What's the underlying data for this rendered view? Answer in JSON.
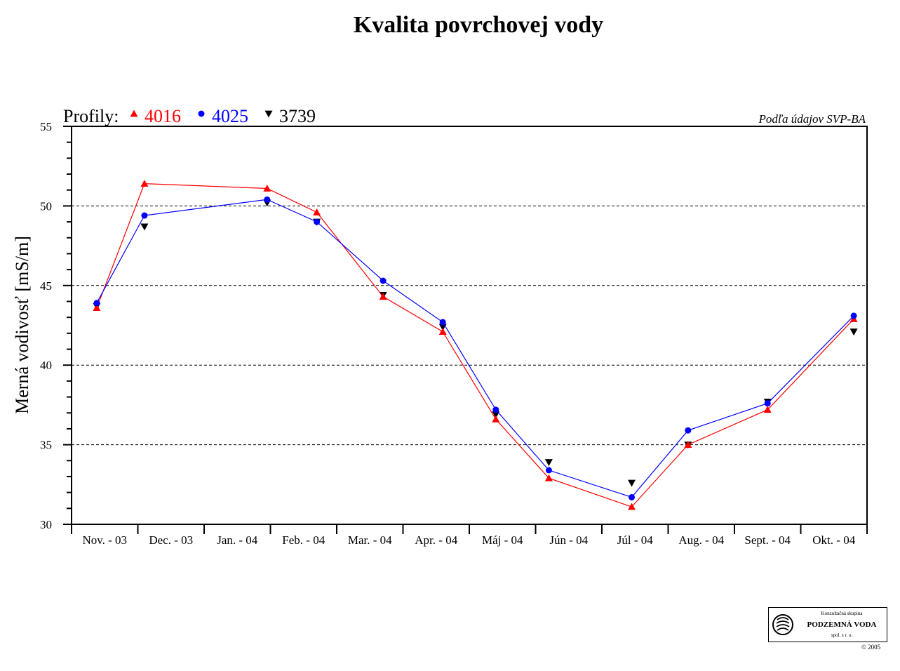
{
  "chart_data": {
    "type": "line",
    "title": "Kvalita povrchovej vody",
    "legend_label": "Profily:",
    "source_note": "Podľa údajov SVP-BA",
    "ylabel": "Merná vodivosť [mS/m]",
    "xlabel": "",
    "ylim": [
      30,
      55
    ],
    "yticks": [
      30,
      35,
      40,
      45,
      50,
      55
    ],
    "grid": "horizontal dashed at 35, 40, 45, 50",
    "legend_position": "top-left",
    "categories": [
      "Nov. - 03",
      "Dec. - 03",
      "Jan. - 04",
      "Feb. - 04",
      "Mar. - 04",
      "Apr. - 04",
      "Máj - 04",
      "Jún - 04",
      "Júl - 04",
      "Aug. - 04",
      "Sept. - 04",
      "Okt. - 04"
    ],
    "series": [
      {
        "name": "4016",
        "color": "#ff0000",
        "marker": "triangle-up",
        "points": [
          [
            0.38,
            43.6
          ],
          [
            1.1,
            51.4
          ],
          [
            2.95,
            51.1
          ],
          [
            3.7,
            49.6
          ],
          [
            4.7,
            44.3
          ],
          [
            5.6,
            42.1
          ],
          [
            6.4,
            36.6
          ],
          [
            7.2,
            32.9
          ],
          [
            8.45,
            31.1
          ],
          [
            9.3,
            35.0
          ],
          [
            10.5,
            37.2
          ],
          [
            11.8,
            42.9
          ]
        ]
      },
      {
        "name": "4025",
        "color": "#0000ff",
        "marker": "circle",
        "points": [
          [
            0.38,
            43.9
          ],
          [
            1.1,
            49.4
          ],
          [
            2.95,
            50.4
          ],
          [
            3.7,
            49.0
          ],
          [
            4.7,
            45.3
          ],
          [
            5.6,
            42.7
          ],
          [
            6.4,
            37.2
          ],
          [
            7.2,
            33.4
          ],
          [
            8.45,
            31.7
          ],
          [
            9.3,
            35.9
          ],
          [
            10.5,
            37.6
          ],
          [
            11.8,
            43.1
          ]
        ]
      },
      {
        "name": "3739",
        "color": "#000000",
        "marker": "triangle-down",
        "show_line": false,
        "points": [
          [
            0.38,
            43.7
          ],
          [
            1.1,
            48.7
          ],
          [
            2.95,
            50.2
          ],
          [
            3.7,
            49.0
          ],
          [
            4.7,
            44.4
          ],
          [
            5.6,
            42.4
          ],
          [
            6.4,
            36.9
          ],
          [
            7.2,
            33.9
          ],
          [
            8.45,
            32.6
          ],
          [
            9.3,
            35.0
          ],
          [
            10.5,
            37.7
          ],
          [
            11.8,
            42.1
          ]
        ]
      }
    ]
  },
  "logo": {
    "top_text": "Konzultačná skupina",
    "main_text": "PODZEMNÁ VODA",
    "sub_text": "spol. s r. o.",
    "copyright": "© 2005"
  }
}
